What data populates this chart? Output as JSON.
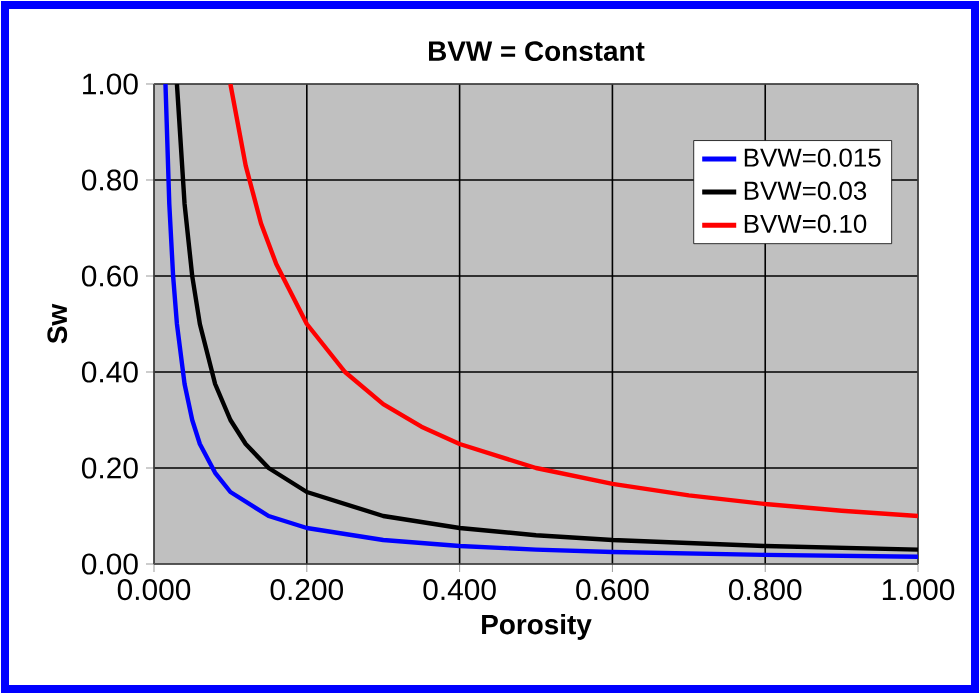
{
  "chart_data": {
    "type": "line",
    "title": "BVW = Constant",
    "xlabel": "Porosity",
    "ylabel": "Sw",
    "xlim": [
      0,
      1
    ],
    "ylim": [
      0,
      1
    ],
    "xticks": [
      {
        "value": 0,
        "label": "0.000"
      },
      {
        "value": 0.2,
        "label": "0.200"
      },
      {
        "value": 0.4,
        "label": "0.400"
      },
      {
        "value": 0.6,
        "label": "0.600"
      },
      {
        "value": 0.8,
        "label": "0.800"
      },
      {
        "value": 1,
        "label": "1.000"
      }
    ],
    "yticks": [
      {
        "value": 0,
        "label": "0.00"
      },
      {
        "value": 0.2,
        "label": "0.20"
      },
      {
        "value": 0.4,
        "label": "0.40"
      },
      {
        "value": 0.6,
        "label": "0.60"
      },
      {
        "value": 0.8,
        "label": "0.80"
      },
      {
        "value": 1,
        "label": "1.00"
      }
    ],
    "grid": true,
    "legend": "top right",
    "marker": "none",
    "line_style": "solid",
    "series": [
      {
        "name": "BVW=0.015",
        "color": "#0000ff",
        "x": [
          0.015,
          0.02,
          0.025,
          0.03,
          0.04,
          0.05,
          0.06,
          0.08,
          0.1,
          0.15,
          0.2,
          0.3,
          0.4,
          0.5,
          0.6,
          0.8,
          1.0
        ],
        "values": [
          1.0,
          0.75,
          0.6,
          0.5,
          0.375,
          0.3,
          0.25,
          0.19,
          0.15,
          0.1,
          0.075,
          0.05,
          0.0375,
          0.03,
          0.025,
          0.019,
          0.015
        ]
      },
      {
        "name": "BVW=0.03",
        "color": "#000000",
        "x": [
          0.03,
          0.04,
          0.05,
          0.06,
          0.08,
          0.1,
          0.12,
          0.15,
          0.2,
          0.3,
          0.4,
          0.5,
          0.6,
          0.8,
          1.0
        ],
        "values": [
          1.0,
          0.75,
          0.6,
          0.5,
          0.375,
          0.3,
          0.25,
          0.2,
          0.15,
          0.1,
          0.075,
          0.06,
          0.05,
          0.0375,
          0.03
        ]
      },
      {
        "name": "BVW=0.10",
        "color": "#ff0000",
        "x": [
          0.1,
          0.12,
          0.14,
          0.16,
          0.2,
          0.25,
          0.3,
          0.35,
          0.4,
          0.5,
          0.6,
          0.7,
          0.8,
          0.9,
          1.0
        ],
        "values": [
          1.0,
          0.83,
          0.71,
          0.625,
          0.5,
          0.4,
          0.333,
          0.286,
          0.25,
          0.2,
          0.167,
          0.143,
          0.125,
          0.111,
          0.1
        ]
      }
    ]
  }
}
